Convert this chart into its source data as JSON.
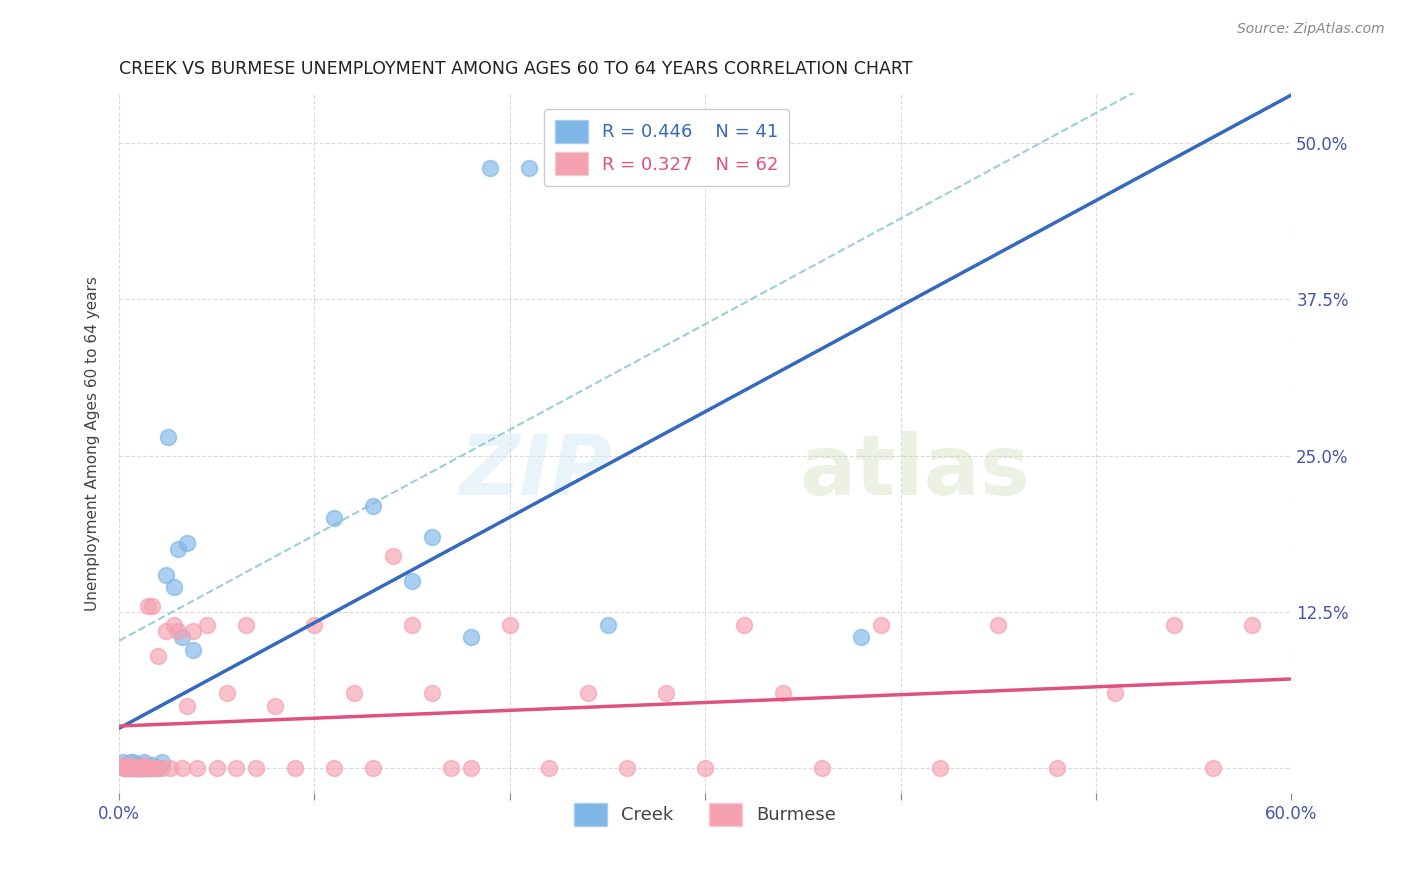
{
  "title": "CREEK VS BURMESE UNEMPLOYMENT AMONG AGES 60 TO 64 YEARS CORRELATION CHART",
  "source": "Source: ZipAtlas.com",
  "ylabel": "Unemployment Among Ages 60 to 64 years",
  "xmin": 0.0,
  "xmax": 0.6,
  "ymin": -0.02,
  "ymax": 0.54,
  "creek_color": "#7EB6E8",
  "burmese_color": "#F5A0B0",
  "creek_line_color": "#3568C0",
  "burmese_line_color": "#E05080",
  "dashed_line_color": "#90C8D8",
  "creek_R": 0.446,
  "creek_N": 41,
  "burmese_R": 0.327,
  "burmese_N": 62,
  "creek_x": [
    0.002,
    0.003,
    0.003,
    0.004,
    0.005,
    0.005,
    0.006,
    0.006,
    0.007,
    0.007,
    0.008,
    0.008,
    0.009,
    0.01,
    0.01,
    0.011,
    0.012,
    0.013,
    0.014,
    0.015,
    0.016,
    0.017,
    0.018,
    0.02,
    0.022,
    0.024,
    0.025,
    0.028,
    0.03,
    0.032,
    0.035,
    0.038,
    0.11,
    0.13,
    0.15,
    0.16,
    0.18,
    0.19,
    0.21,
    0.25,
    0.38
  ],
  "creek_y": [
    0.005,
    0.003,
    0.0,
    0.0,
    0.0,
    0.003,
    0.0,
    0.005,
    0.0,
    0.005,
    0.0,
    0.002,
    0.0,
    0.0,
    0.003,
    0.0,
    0.0,
    0.005,
    0.0,
    0.0,
    0.0,
    0.003,
    0.0,
    0.0,
    0.005,
    0.155,
    0.265,
    0.145,
    0.175,
    0.105,
    0.18,
    0.095,
    0.2,
    0.21,
    0.15,
    0.185,
    0.105,
    0.48,
    0.48,
    0.115,
    0.105
  ],
  "burmese_x": [
    0.002,
    0.003,
    0.004,
    0.005,
    0.006,
    0.007,
    0.008,
    0.009,
    0.01,
    0.011,
    0.012,
    0.013,
    0.014,
    0.015,
    0.016,
    0.017,
    0.018,
    0.019,
    0.02,
    0.022,
    0.024,
    0.026,
    0.028,
    0.03,
    0.032,
    0.035,
    0.038,
    0.04,
    0.045,
    0.05,
    0.055,
    0.06,
    0.065,
    0.07,
    0.08,
    0.09,
    0.1,
    0.11,
    0.12,
    0.13,
    0.14,
    0.15,
    0.16,
    0.17,
    0.18,
    0.2,
    0.22,
    0.24,
    0.26,
    0.28,
    0.3,
    0.32,
    0.34,
    0.36,
    0.39,
    0.42,
    0.45,
    0.48,
    0.51,
    0.54,
    0.56,
    0.58
  ],
  "burmese_y": [
    0.0,
    0.003,
    0.0,
    0.0,
    0.003,
    0.0,
    0.0,
    0.0,
    0.0,
    0.0,
    0.0,
    0.003,
    0.0,
    0.13,
    0.0,
    0.13,
    0.0,
    0.0,
    0.09,
    0.0,
    0.11,
    0.0,
    0.115,
    0.11,
    0.0,
    0.05,
    0.11,
    0.0,
    0.115,
    0.0,
    0.06,
    0.0,
    0.115,
    0.0,
    0.05,
    0.0,
    0.115,
    0.0,
    0.06,
    0.0,
    0.17,
    0.115,
    0.06,
    0.0,
    0.0,
    0.115,
    0.0,
    0.06,
    0.0,
    0.06,
    0.0,
    0.115,
    0.06,
    0.0,
    0.115,
    0.0,
    0.115,
    0.0,
    0.06,
    0.115,
    0.0,
    0.115
  ],
  "watermark_zip": "ZIP",
  "watermark_atlas": "atlas",
  "background_color": "#FFFFFF",
  "grid_color": "#CCCCCC"
}
